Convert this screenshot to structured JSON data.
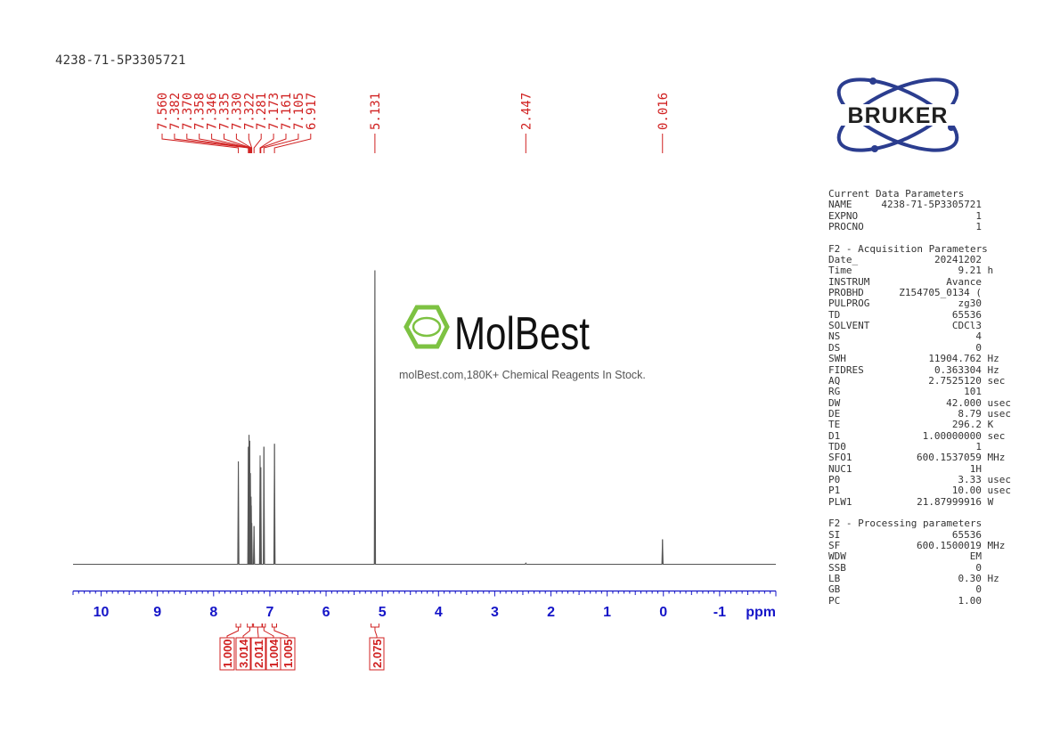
{
  "sample_id": "4238-71-5P3305721",
  "watermark": {
    "brand": "MolBest",
    "tagline": "molBest.com,180K+ Chemical Reagents In Stock."
  },
  "logo": {
    "text": "BRUKER"
  },
  "colors": {
    "spectrum": "#555555",
    "axis": "#1515c8",
    "annotation": "#d02020",
    "watermark": "#7dc242",
    "logo": "#2b3d8f"
  },
  "chart_data": {
    "type": "line",
    "title": "",
    "xlabel": "ppm",
    "ylabel": "",
    "xlim": [
      10.5,
      -2.0
    ],
    "x_reversed": true,
    "x_ticks": [
      "10",
      "9",
      "8",
      "7",
      "6",
      "5",
      "4",
      "3",
      "2",
      "1",
      "0",
      "-1"
    ],
    "grid": false,
    "peak_labels": [
      "7.560",
      "7.382",
      "7.370",
      "7.358",
      "7.346",
      "7.335",
      "7.330",
      "7.322",
      "7.281",
      "7.173",
      "7.161",
      "7.105",
      "6.917",
      "5.131",
      "2.447",
      "0.016"
    ],
    "peaks": [
      {
        "ppm": 7.56,
        "height": 0.35
      },
      {
        "ppm": 7.382,
        "height": 0.4
      },
      {
        "ppm": 7.37,
        "height": 0.44
      },
      {
        "ppm": 7.358,
        "height": 0.42
      },
      {
        "ppm": 7.346,
        "height": 0.31
      },
      {
        "ppm": 7.335,
        "height": 0.23
      },
      {
        "ppm": 7.33,
        "height": 0.2
      },
      {
        "ppm": 7.322,
        "height": 0.14
      },
      {
        "ppm": 7.281,
        "height": 0.13
      },
      {
        "ppm": 7.173,
        "height": 0.37
      },
      {
        "ppm": 7.161,
        "height": 0.33
      },
      {
        "ppm": 7.105,
        "height": 0.4
      },
      {
        "ppm": 6.917,
        "height": 0.41
      },
      {
        "ppm": 5.131,
        "height": 1.0
      },
      {
        "ppm": 2.447,
        "height": 0.004
      },
      {
        "ppm": 0.016,
        "height": 0.085
      }
    ],
    "integrals": [
      {
        "value": "1.000",
        "ppm_range": [
          7.6,
          7.52
        ]
      },
      {
        "value": "3.014",
        "ppm_range": [
          7.4,
          7.31
        ]
      },
      {
        "value": "2.011",
        "ppm_range": [
          7.29,
          7.14
        ]
      },
      {
        "value": "1.004",
        "ppm_range": [
          7.13,
          7.08
        ]
      },
      {
        "value": "1.005",
        "ppm_range": [
          6.96,
          6.88
        ]
      },
      {
        "value": "2.075",
        "ppm_range": [
          5.2,
          5.06
        ]
      }
    ]
  },
  "params": {
    "current": {
      "title": "Current Data Parameters",
      "rows": [
        {
          "key": "NAME",
          "value": "4238-71-5P3305721",
          "unit": ""
        },
        {
          "key": "EXPNO",
          "value": "1",
          "unit": ""
        },
        {
          "key": "PROCNO",
          "value": "1",
          "unit": ""
        }
      ]
    },
    "acquisition": {
      "title": "F2 - Acquisition Parameters",
      "rows": [
        {
          "key": "Date_",
          "value": "20241202",
          "unit": ""
        },
        {
          "key": "Time",
          "value": "9.21",
          "unit": "h"
        },
        {
          "key": "INSTRUM",
          "value": "Avance",
          "unit": ""
        },
        {
          "key": "PROBHD",
          "value": "Z154705_0134 (",
          "unit": ""
        },
        {
          "key": "PULPROG",
          "value": "zg30",
          "unit": ""
        },
        {
          "key": "TD",
          "value": "65536",
          "unit": ""
        },
        {
          "key": "SOLVENT",
          "value": "CDCl3",
          "unit": ""
        },
        {
          "key": "NS",
          "value": "4",
          "unit": ""
        },
        {
          "key": "DS",
          "value": "0",
          "unit": ""
        },
        {
          "key": "SWH",
          "value": "11904.762",
          "unit": "Hz"
        },
        {
          "key": "FIDRES",
          "value": "0.363304",
          "unit": "Hz"
        },
        {
          "key": "AQ",
          "value": "2.7525120",
          "unit": "sec"
        },
        {
          "key": "RG",
          "value": "101",
          "unit": ""
        },
        {
          "key": "DW",
          "value": "42.000",
          "unit": "usec"
        },
        {
          "key": "DE",
          "value": "8.79",
          "unit": "usec"
        },
        {
          "key": "TE",
          "value": "296.2",
          "unit": "K"
        },
        {
          "key": "D1",
          "value": "1.00000000",
          "unit": "sec"
        },
        {
          "key": "TD0",
          "value": "1",
          "unit": ""
        },
        {
          "key": "SFO1",
          "value": "600.1537059",
          "unit": "MHz"
        },
        {
          "key": "NUC1",
          "value": "1H",
          "unit": ""
        },
        {
          "key": "P0",
          "value": "3.33",
          "unit": "usec"
        },
        {
          "key": "P1",
          "value": "10.00",
          "unit": "usec"
        },
        {
          "key": "PLW1",
          "value": "21.87999916",
          "unit": "W"
        }
      ]
    },
    "processing": {
      "title": "F2 - Processing parameters",
      "rows": [
        {
          "key": "SI",
          "value": "65536",
          "unit": ""
        },
        {
          "key": "SF",
          "value": "600.1500019",
          "unit": "MHz"
        },
        {
          "key": "WDW",
          "value": "EM",
          "unit": ""
        },
        {
          "key": "SSB",
          "value": "0",
          "unit": ""
        },
        {
          "key": "LB",
          "value": "0.30",
          "unit": "Hz"
        },
        {
          "key": "GB",
          "value": "0",
          "unit": ""
        },
        {
          "key": "PC",
          "value": "1.00",
          "unit": ""
        }
      ]
    }
  }
}
